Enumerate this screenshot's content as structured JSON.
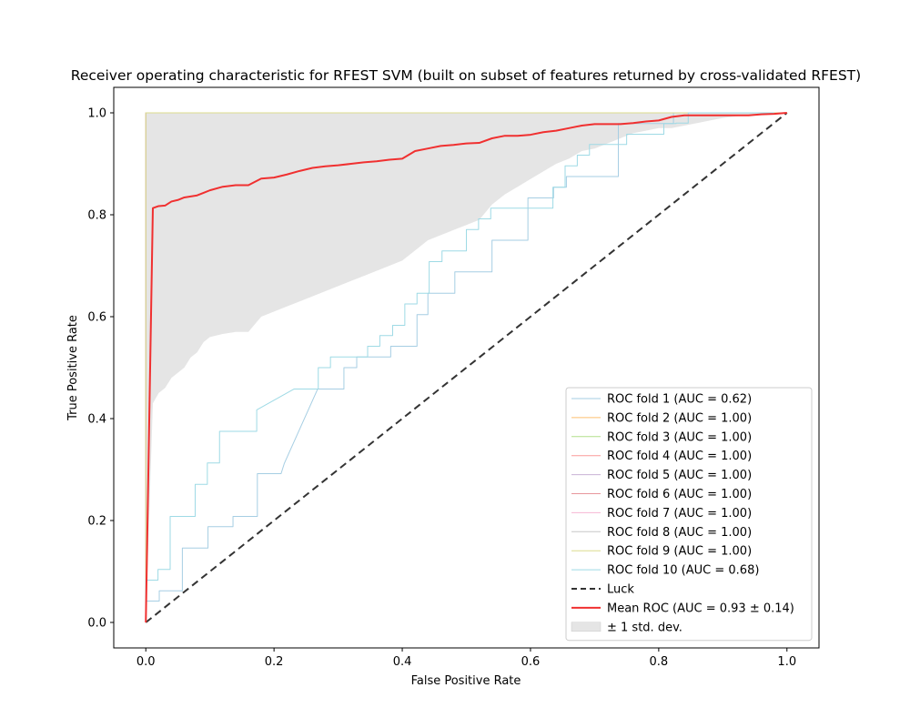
{
  "chart_data": {
    "type": "line",
    "title": "Receiver operating characteristic for RFEST SVM (built on subset of features returned by cross-validated RFEST)",
    "xlabel": "False Positive Rate",
    "ylabel": "True Positive Rate",
    "xlim": [
      -0.05,
      1.05
    ],
    "ylim": [
      -0.05,
      1.05
    ],
    "xticks": [
      0.0,
      0.2,
      0.4,
      0.6,
      0.8,
      1.0
    ],
    "yticks": [
      0.0,
      0.2,
      0.4,
      0.6,
      0.8,
      1.0
    ],
    "xtick_labels": [
      "0.0",
      "0.2",
      "0.4",
      "0.6",
      "0.8",
      "1.0"
    ],
    "ytick_labels": [
      "0.0",
      "0.2",
      "0.4",
      "0.6",
      "0.8",
      "1.0"
    ],
    "grid": false,
    "legend_position": "lower-right",
    "series": [
      {
        "name": "ROC fold 1 (AUC = 0.62)",
        "color": "#a6cee3",
        "width": 1,
        "dash": "none",
        "x": [
          0.0,
          0.0,
          0.021,
          0.021,
          0.057,
          0.057,
          0.097,
          0.097,
          0.136,
          0.136,
          0.174,
          0.174,
          0.211,
          0.216,
          0.268,
          0.268,
          0.309,
          0.309,
          0.329,
          0.329,
          0.382,
          0.382,
          0.423,
          0.423,
          0.44,
          0.44,
          0.482,
          0.482,
          0.54,
          0.54,
          0.596,
          0.596,
          0.636,
          0.636,
          0.656,
          0.656,
          0.737,
          0.737,
          0.823,
          0.823,
          0.98,
          0.98
        ],
        "y": [
          0.0,
          0.042,
          0.042,
          0.062,
          0.062,
          0.146,
          0.146,
          0.188,
          0.188,
          0.208,
          0.208,
          0.292,
          0.292,
          0.312,
          0.458,
          0.458,
          0.458,
          0.5,
          0.5,
          0.521,
          0.521,
          0.542,
          0.542,
          0.604,
          0.604,
          0.646,
          0.646,
          0.688,
          0.688,
          0.75,
          0.75,
          0.833,
          0.833,
          0.854,
          0.854,
          0.875,
          0.875,
          0.979,
          0.979,
          1.0,
          1.0,
          1.0
        ]
      },
      {
        "name": "ROC fold 2 (AUC = 1.00)",
        "color": "#fdbf6f",
        "width": 1,
        "dash": "none",
        "x": [
          0.0,
          0.0,
          1.0
        ],
        "y": [
          0.0,
          1.0,
          1.0
        ]
      },
      {
        "name": "ROC fold 3 (AUC = 1.00)",
        "color": "#b2df8a",
        "width": 1,
        "dash": "none",
        "x": [
          0.0,
          0.0,
          0.0,
          1.0
        ],
        "y": [
          0.0,
          0.44,
          1.0,
          1.0
        ]
      },
      {
        "name": "ROC fold 4 (AUC = 1.00)",
        "color": "#fb9a99",
        "width": 1,
        "dash": "none",
        "x": [
          0.0,
          0.0,
          1.0
        ],
        "y": [
          0.0,
          1.0,
          1.0
        ]
      },
      {
        "name": "ROC fold 5 (AUC = 1.00)",
        "color": "#cab2d6",
        "width": 1,
        "dash": "none",
        "x": [
          0.0,
          0.0,
          1.0
        ],
        "y": [
          0.0,
          1.0,
          1.0
        ]
      },
      {
        "name": "ROC fold 6 (AUC = 1.00)",
        "color": "#e7969c",
        "width": 1,
        "dash": "none",
        "x": [
          0.0,
          0.0,
          1.0
        ],
        "y": [
          0.0,
          1.0,
          1.0
        ]
      },
      {
        "name": "ROC fold 7 (AUC = 1.00)",
        "color": "#f7b6d2",
        "width": 1,
        "dash": "none",
        "x": [
          0.0,
          0.0,
          1.0
        ],
        "y": [
          0.0,
          1.0,
          1.0
        ]
      },
      {
        "name": "ROC fold 8 (AUC = 1.00)",
        "color": "#c7c7c7",
        "width": 1,
        "dash": "none",
        "x": [
          0.0,
          0.0,
          1.0
        ],
        "y": [
          0.0,
          1.0,
          1.0
        ]
      },
      {
        "name": "ROC fold 9 (AUC = 1.00)",
        "color": "#dbdb8d",
        "width": 1,
        "dash": "none",
        "x": [
          0.0,
          0.0,
          1.0
        ],
        "y": [
          0.0,
          1.0,
          1.0
        ]
      },
      {
        "name": "ROC fold 10 (AUC = 0.68)",
        "color": "#9edae5",
        "width": 1,
        "dash": "none",
        "x": [
          0.0,
          0.0,
          0.019,
          0.019,
          0.038,
          0.038,
          0.077,
          0.077,
          0.096,
          0.096,
          0.115,
          0.115,
          0.173,
          0.173,
          0.231,
          0.269,
          0.269,
          0.288,
          0.288,
          0.346,
          0.346,
          0.365,
          0.365,
          0.385,
          0.385,
          0.404,
          0.404,
          0.423,
          0.423,
          0.442,
          0.442,
          0.462,
          0.462,
          0.5,
          0.5,
          0.519,
          0.519,
          0.538,
          0.538,
          0.635,
          0.635,
          0.654,
          0.654,
          0.673,
          0.673,
          0.692,
          0.692,
          0.75,
          0.75,
          0.808,
          0.808,
          0.827,
          0.827,
          0.846,
          0.846,
          0.98
        ],
        "y": [
          0.0,
          0.083,
          0.083,
          0.104,
          0.104,
          0.208,
          0.208,
          0.271,
          0.271,
          0.313,
          0.313,
          0.375,
          0.375,
          0.417,
          0.458,
          0.458,
          0.5,
          0.5,
          0.521,
          0.521,
          0.542,
          0.542,
          0.563,
          0.563,
          0.583,
          0.583,
          0.625,
          0.625,
          0.646,
          0.646,
          0.708,
          0.708,
          0.729,
          0.729,
          0.771,
          0.771,
          0.792,
          0.792,
          0.813,
          0.813,
          0.854,
          0.854,
          0.896,
          0.896,
          0.917,
          0.917,
          0.938,
          0.938,
          0.958,
          0.958,
          0.979,
          0.979,
          0.98,
          0.98,
          1.0,
          1.0
        ]
      },
      {
        "name": "Luck",
        "color": "#333333",
        "width": 2,
        "dash": "8,5",
        "x": [
          0.0,
          1.0
        ],
        "y": [
          0.0,
          1.0
        ]
      },
      {
        "name": "Mean ROC (AUC = 0.93 ± 0.14)",
        "color": "#f03030",
        "width": 2,
        "dash": "none",
        "x": [
          0.0,
          0.011,
          0.02,
          0.03,
          0.04,
          0.05,
          0.06,
          0.07,
          0.08,
          0.09,
          0.1,
          0.12,
          0.14,
          0.16,
          0.18,
          0.2,
          0.22,
          0.24,
          0.26,
          0.28,
          0.3,
          0.32,
          0.34,
          0.36,
          0.38,
          0.4,
          0.42,
          0.44,
          0.46,
          0.48,
          0.5,
          0.52,
          0.54,
          0.56,
          0.58,
          0.6,
          0.62,
          0.64,
          0.66,
          0.68,
          0.7,
          0.72,
          0.74,
          0.76,
          0.78,
          0.8,
          0.82,
          0.84,
          0.86,
          0.88,
          0.9,
          0.92,
          0.94,
          0.96,
          0.98,
          1.0
        ],
        "y": [
          0.0,
          0.813,
          0.817,
          0.818,
          0.826,
          0.829,
          0.834,
          0.836,
          0.838,
          0.843,
          0.848,
          0.855,
          0.858,
          0.858,
          0.871,
          0.873,
          0.879,
          0.886,
          0.892,
          0.895,
          0.897,
          0.9,
          0.903,
          0.905,
          0.908,
          0.91,
          0.925,
          0.93,
          0.935,
          0.937,
          0.94,
          0.941,
          0.95,
          0.955,
          0.955,
          0.957,
          0.962,
          0.965,
          0.97,
          0.975,
          0.978,
          0.978,
          0.978,
          0.98,
          0.983,
          0.985,
          0.992,
          0.995,
          0.995,
          0.995,
          0.995,
          0.995,
          0.995,
          0.997,
          0.998,
          1.0
        ]
      }
    ],
    "std_band": {
      "label": "± 1 std. dev.",
      "color": "#e5e5e5",
      "x": [
        0.0,
        0.011,
        0.02,
        0.03,
        0.04,
        0.05,
        0.06,
        0.07,
        0.08,
        0.09,
        0.1,
        0.12,
        0.14,
        0.16,
        0.18,
        0.2,
        0.22,
        0.24,
        0.26,
        0.28,
        0.3,
        0.32,
        0.34,
        0.36,
        0.38,
        0.4,
        0.42,
        0.44,
        0.46,
        0.48,
        0.5,
        0.52,
        0.54,
        0.56,
        0.58,
        0.6,
        0.62,
        0.64,
        0.66,
        0.68,
        0.7,
        0.72,
        0.74,
        0.76,
        0.78,
        0.8,
        0.82,
        0.84,
        0.86,
        0.88,
        0.9,
        0.92,
        0.94,
        0.96,
        0.98,
        1.0
      ],
      "lower": [
        0.0,
        0.43,
        0.45,
        0.46,
        0.48,
        0.49,
        0.5,
        0.52,
        0.53,
        0.55,
        0.56,
        0.566,
        0.57,
        0.57,
        0.6,
        0.61,
        0.62,
        0.63,
        0.64,
        0.65,
        0.66,
        0.67,
        0.68,
        0.69,
        0.7,
        0.71,
        0.73,
        0.75,
        0.76,
        0.77,
        0.78,
        0.79,
        0.82,
        0.84,
        0.855,
        0.87,
        0.885,
        0.9,
        0.91,
        0.925,
        0.93,
        0.94,
        0.95,
        0.96,
        0.965,
        0.97,
        0.97,
        0.975,
        0.98,
        0.985,
        0.99,
        0.993,
        0.995,
        0.997,
        0.998,
        1.0
      ],
      "upper": [
        1.0,
        1.0,
        1.0,
        1.0,
        1.0,
        1.0,
        1.0,
        1.0,
        1.0,
        1.0,
        1.0,
        1.0,
        1.0,
        1.0,
        1.0,
        1.0,
        1.0,
        1.0,
        1.0,
        1.0,
        1.0,
        1.0,
        1.0,
        1.0,
        1.0,
        1.0,
        1.0,
        1.0,
        1.0,
        1.0,
        1.0,
        1.0,
        1.0,
        1.0,
        1.0,
        1.0,
        1.0,
        1.0,
        1.0,
        1.0,
        1.0,
        1.0,
        1.0,
        1.0,
        1.0,
        1.0,
        1.0,
        1.0,
        1.0,
        1.0,
        1.0,
        1.0,
        1.0,
        1.0,
        1.0,
        1.0
      ]
    }
  }
}
